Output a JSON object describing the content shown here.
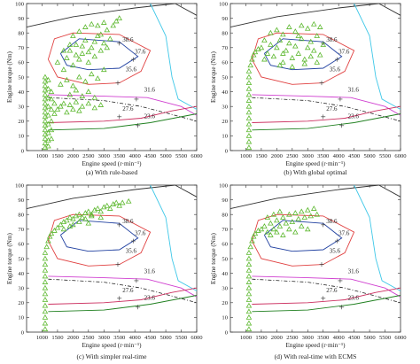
{
  "chart_data": [
    {
      "type": "scatter",
      "caption": "(a) With rule-based",
      "xlabel": "Engine speed (r·min⁻¹)",
      "ylabel": "Engine torque (Nm)",
      "xlim": [
        500,
        6000
      ],
      "ylim": [
        0,
        100
      ],
      "xticks": [
        1000,
        1500,
        2000,
        2500,
        3000,
        3500,
        4000,
        4500,
        5000,
        5500,
        6000
      ],
      "yticks": [
        0,
        10,
        20,
        30,
        40,
        50,
        60,
        70,
        80,
        90,
        100
      ],
      "contour_labels": [
        "38.6",
        "37.6",
        "35.6",
        "31.6",
        "27.6",
        "23.6"
      ],
      "markers": "triangle",
      "points": [
        [
          1100,
          2
        ],
        [
          1100,
          5
        ],
        [
          1100,
          8
        ],
        [
          1100,
          11
        ],
        [
          1100,
          14
        ],
        [
          1100,
          17
        ],
        [
          1100,
          20
        ],
        [
          1100,
          23
        ],
        [
          1100,
          26
        ],
        [
          1100,
          29
        ],
        [
          1100,
          32
        ],
        [
          1100,
          35
        ],
        [
          1100,
          38
        ],
        [
          1100,
          41
        ],
        [
          1100,
          44
        ],
        [
          1100,
          47
        ],
        [
          1100,
          50
        ],
        [
          1200,
          3
        ],
        [
          1200,
          7
        ],
        [
          1200,
          12
        ],
        [
          1200,
          18
        ],
        [
          1200,
          24
        ],
        [
          1200,
          30
        ],
        [
          1200,
          36
        ],
        [
          1200,
          42
        ],
        [
          1200,
          48
        ],
        [
          1300,
          8
        ],
        [
          1300,
          14
        ],
        [
          1300,
          20
        ],
        [
          1300,
          28
        ],
        [
          1300,
          35
        ],
        [
          1300,
          40
        ],
        [
          1400,
          25
        ],
        [
          1400,
          32
        ],
        [
          1500,
          28
        ],
        [
          1600,
          30
        ],
        [
          1700,
          32
        ],
        [
          1800,
          26
        ],
        [
          1900,
          31
        ],
        [
          2000,
          28
        ],
        [
          2100,
          33
        ],
        [
          2200,
          27
        ],
        [
          2300,
          30
        ],
        [
          2500,
          32
        ],
        [
          2700,
          29
        ],
        [
          2900,
          31
        ],
        [
          1500,
          60
        ],
        [
          1700,
          55
        ],
        [
          1800,
          63
        ],
        [
          1900,
          68
        ],
        [
          2000,
          58
        ],
        [
          2100,
          72
        ],
        [
          2200,
          62
        ],
        [
          2300,
          66
        ],
        [
          2400,
          75
        ],
        [
          2500,
          60
        ],
        [
          2600,
          70
        ],
        [
          2700,
          64
        ],
        [
          2800,
          78
        ],
        [
          2900,
          68
        ],
        [
          3000,
          73
        ],
        [
          3100,
          82
        ],
        [
          3200,
          76
        ],
        [
          3300,
          85
        ],
        [
          3400,
          88
        ],
        [
          3500,
          90
        ],
        [
          2000,
          78
        ],
        [
          2200,
          81
        ],
        [
          2400,
          84
        ],
        [
          2600,
          86
        ],
        [
          2800,
          85
        ],
        [
          3000,
          87
        ],
        [
          1600,
          45
        ],
        [
          1800,
          48
        ],
        [
          2000,
          44
        ],
        [
          2200,
          50
        ],
        [
          2400,
          47
        ],
        [
          2600,
          52
        ],
        [
          2800,
          49
        ],
        [
          3000,
          55
        ],
        [
          1900,
          38
        ],
        [
          2100,
          41
        ],
        [
          2300,
          37
        ],
        [
          2500,
          40
        ],
        [
          2700,
          36
        ],
        [
          1700,
          68
        ],
        [
          1900,
          72
        ],
        [
          2100,
          65
        ],
        [
          2300,
          71
        ],
        [
          2500,
          67
        ],
        [
          2700,
          74
        ],
        [
          2900,
          79
        ],
        [
          3100,
          70
        ]
      ]
    },
    {
      "type": "scatter",
      "caption": "(b) With global optimal",
      "xlabel": "Engine speed (r·min⁻¹)",
      "ylabel": "Engine torque (Nm)",
      "xlim": [
        500,
        6000
      ],
      "ylim": [
        0,
        100
      ],
      "xticks": [
        1000,
        1500,
        2000,
        2500,
        3000,
        3500,
        4000,
        4500,
        5000,
        5500,
        6000
      ],
      "yticks": [
        0,
        10,
        20,
        30,
        40,
        50,
        60,
        70,
        80,
        90,
        100
      ],
      "contour_labels": [
        "38.6",
        "37.6",
        "35.6",
        "31.6",
        "27.6",
        "23.6"
      ],
      "markers": "triangle",
      "points": [
        [
          1100,
          2
        ],
        [
          1100,
          6
        ],
        [
          1100,
          10
        ],
        [
          1100,
          14
        ],
        [
          1100,
          18
        ],
        [
          1100,
          22
        ],
        [
          1100,
          26
        ],
        [
          1100,
          30
        ],
        [
          1100,
          34
        ],
        [
          1100,
          38
        ],
        [
          1100,
          42
        ],
        [
          1100,
          46
        ],
        [
          1100,
          50
        ],
        [
          1100,
          54
        ],
        [
          1150,
          58
        ],
        [
          1200,
          62
        ],
        [
          1250,
          65
        ],
        [
          1300,
          67
        ],
        [
          1400,
          69
        ],
        [
          1500,
          70
        ],
        [
          1600,
          62
        ],
        [
          1700,
          66
        ],
        [
          1800,
          72
        ],
        [
          1900,
          64
        ],
        [
          2000,
          70
        ],
        [
          2100,
          75
        ],
        [
          2200,
          60
        ],
        [
          2300,
          68
        ],
        [
          2400,
          73
        ],
        [
          2500,
          63
        ],
        [
          2600,
          71
        ],
        [
          2700,
          66
        ],
        [
          2800,
          76
        ],
        [
          2900,
          62
        ],
        [
          3000,
          70
        ],
        [
          3100,
          74
        ],
        [
          3200,
          68
        ],
        [
          3300,
          78
        ],
        [
          3400,
          65
        ],
        [
          3500,
          72
        ],
        [
          1800,
          80
        ],
        [
          2000,
          82
        ],
        [
          2200,
          79
        ],
        [
          2400,
          84
        ],
        [
          2600,
          81
        ],
        [
          2800,
          85
        ],
        [
          3000,
          83
        ],
        [
          3200,
          86
        ],
        [
          3400,
          84
        ],
        [
          2100,
          58
        ],
        [
          2500,
          57
        ],
        [
          2900,
          59
        ],
        [
          3300,
          60
        ],
        [
          1600,
          75
        ],
        [
          2200,
          66
        ],
        [
          2700,
          78
        ],
        [
          3100,
          64
        ]
      ]
    },
    {
      "type": "scatter",
      "caption": "(c) With simpler real-time",
      "xlabel": "Engine speed (r·min⁻¹)",
      "ylabel": "Engine torque (Nm)",
      "xlim": [
        500,
        6000
      ],
      "ylim": [
        0,
        100
      ],
      "xticks": [
        1000,
        1500,
        2000,
        2500,
        3000,
        3500,
        4000,
        4500,
        5000,
        5500,
        6000
      ],
      "yticks": [
        0,
        10,
        20,
        30,
        40,
        50,
        60,
        70,
        80,
        90,
        100
      ],
      "contour_labels": [
        "38.6",
        "37.6",
        "35.6",
        "31.6",
        "27.6",
        "23.6"
      ],
      "markers": "triangle",
      "points": [
        [
          1100,
          2
        ],
        [
          1100,
          6
        ],
        [
          1100,
          10
        ],
        [
          1100,
          14
        ],
        [
          1100,
          18
        ],
        [
          1100,
          22
        ],
        [
          1100,
          26
        ],
        [
          1100,
          30
        ],
        [
          1100,
          34
        ],
        [
          1100,
          38
        ],
        [
          1100,
          42
        ],
        [
          1100,
          46
        ],
        [
          1100,
          50
        ],
        [
          1100,
          54
        ],
        [
          1150,
          58
        ],
        [
          1200,
          62
        ],
        [
          1250,
          65
        ],
        [
          1300,
          67
        ],
        [
          1400,
          69
        ],
        [
          1500,
          71
        ],
        [
          1600,
          73
        ],
        [
          1700,
          75
        ],
        [
          1800,
          76
        ],
        [
          1900,
          78
        ],
        [
          2000,
          77
        ],
        [
          2100,
          79
        ],
        [
          2200,
          80
        ],
        [
          2300,
          78
        ],
        [
          2400,
          81
        ],
        [
          2500,
          82
        ],
        [
          2600,
          80
        ],
        [
          2700,
          83
        ],
        [
          2800,
          84
        ],
        [
          2900,
          82
        ],
        [
          3000,
          85
        ],
        [
          3100,
          86
        ],
        [
          3200,
          84
        ],
        [
          3300,
          87
        ],
        [
          3400,
          88
        ],
        [
          3500,
          86
        ],
        [
          3600,
          88
        ],
        [
          3800,
          89
        ],
        [
          2000,
          73
        ],
        [
          2200,
          75
        ],
        [
          2400,
          77
        ],
        [
          2600,
          79
        ],
        [
          1700,
          70
        ],
        [
          1900,
          72
        ],
        [
          2500,
          74
        ],
        [
          2900,
          78
        ]
      ]
    },
    {
      "type": "scatter",
      "caption": "(d) With real-time with ECMS",
      "xlabel": "Engine speed (r·min⁻¹)",
      "ylabel": "Engine torque (Nm)",
      "xlim": [
        500,
        6000
      ],
      "ylim": [
        0,
        100
      ],
      "xticks": [
        1000,
        1500,
        2000,
        2500,
        3000,
        3500,
        4000,
        4500,
        5000,
        5500,
        6000
      ],
      "yticks": [
        0,
        10,
        20,
        30,
        40,
        50,
        60,
        70,
        80,
        90,
        100
      ],
      "contour_labels": [
        "38.6",
        "37.6",
        "35.6",
        "31.6",
        "27.6",
        "23.6"
      ],
      "markers": "triangle",
      "points": [
        [
          1100,
          2
        ],
        [
          1100,
          6
        ],
        [
          1100,
          10
        ],
        [
          1100,
          14
        ],
        [
          1100,
          18
        ],
        [
          1100,
          22
        ],
        [
          1100,
          26
        ],
        [
          1100,
          30
        ],
        [
          1100,
          34
        ],
        [
          1100,
          38
        ],
        [
          1100,
          42
        ],
        [
          1100,
          46
        ],
        [
          1100,
          50
        ],
        [
          1100,
          54
        ],
        [
          1150,
          58
        ],
        [
          1200,
          62
        ],
        [
          1250,
          65
        ],
        [
          1300,
          67
        ],
        [
          1400,
          69
        ],
        [
          1500,
          70
        ],
        [
          1600,
          72
        ],
        [
          1700,
          68
        ],
        [
          1800,
          74
        ],
        [
          1900,
          70
        ],
        [
          2000,
          76
        ],
        [
          2100,
          72
        ],
        [
          2200,
          78
        ],
        [
          2300,
          74
        ],
        [
          2400,
          80
        ],
        [
          2500,
          75
        ],
        [
          2600,
          81
        ],
        [
          2700,
          77
        ],
        [
          2800,
          82
        ],
        [
          2900,
          78
        ],
        [
          3000,
          83
        ],
        [
          3100,
          79
        ],
        [
          3200,
          84
        ],
        [
          3300,
          80
        ],
        [
          1800,
          66
        ],
        [
          2000,
          68
        ],
        [
          2200,
          66
        ],
        [
          2400,
          70
        ],
        [
          2600,
          68
        ],
        [
          2800,
          72
        ],
        [
          3000,
          70
        ],
        [
          1700,
          78
        ],
        [
          1900,
          80
        ],
        [
          2100,
          82
        ]
      ]
    }
  ]
}
